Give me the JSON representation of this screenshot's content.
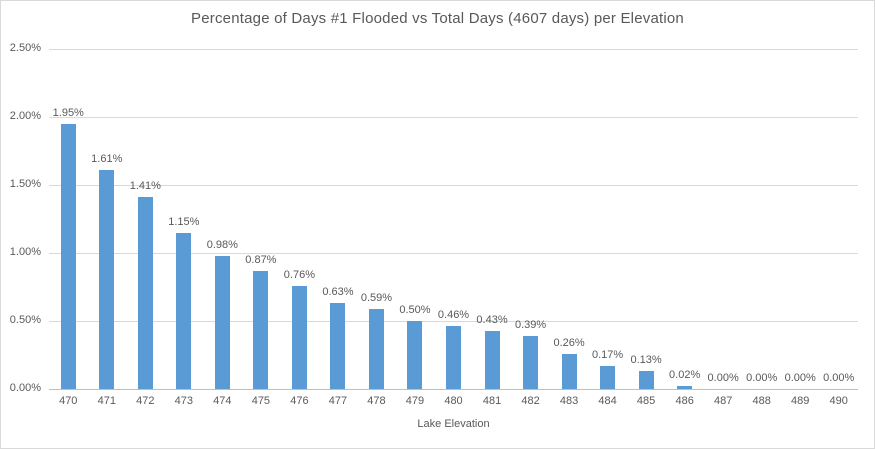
{
  "chart_data": {
    "type": "bar",
    "title": "Percentage of Days #1 Flooded vs Total Days (4607 days) per Elevation",
    "xlabel": "Lake Elevation",
    "ylabel": "",
    "categories": [
      "470",
      "471",
      "472",
      "473",
      "474",
      "475",
      "476",
      "477",
      "478",
      "479",
      "480",
      "481",
      "482",
      "483",
      "484",
      "485",
      "486",
      "487",
      "488",
      "489",
      "490"
    ],
    "values": [
      1.95,
      1.61,
      1.41,
      1.15,
      0.98,
      0.87,
      0.76,
      0.63,
      0.59,
      0.5,
      0.46,
      0.43,
      0.39,
      0.26,
      0.17,
      0.13,
      0.02,
      0.0,
      0.0,
      0.0,
      0.0
    ],
    "data_labels": [
      "1.95%",
      "1.61%",
      "1.41%",
      "1.15%",
      "0.98%",
      "0.87%",
      "0.76%",
      "0.63%",
      "0.59%",
      "0.50%",
      "0.46%",
      "0.43%",
      "0.39%",
      "0.26%",
      "0.17%",
      "0.13%",
      "0.02%",
      "0.00%",
      "0.00%",
      "0.00%",
      "0.00%"
    ],
    "y_ticks": [
      "2.50%",
      "2.00%",
      "1.50%",
      "1.00%",
      "0.50%",
      "0.00%"
    ],
    "ylim": [
      0,
      2.5
    ],
    "grid": true,
    "legend": "none",
    "bar_color": "#5b9bd5",
    "text_color": "#595959",
    "gridline_color": "#d9d9d9"
  }
}
